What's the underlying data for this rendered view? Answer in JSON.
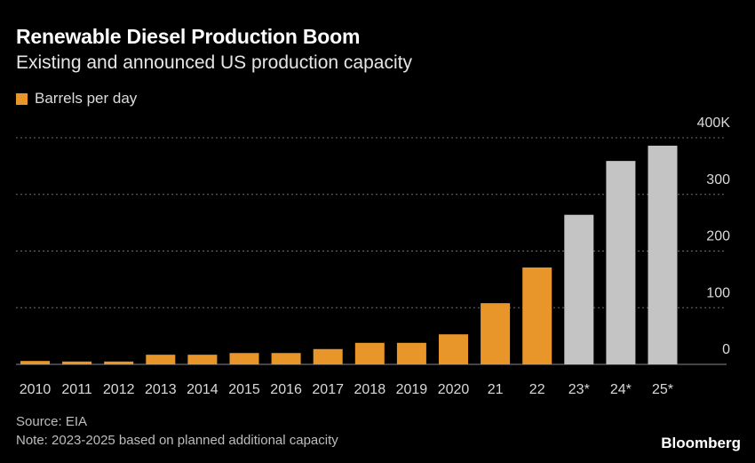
{
  "title": "Renewable Diesel Production Boom",
  "subtitle": "Existing and announced US production capacity",
  "legend": {
    "label": "Barrels per day",
    "color": "#e8962a"
  },
  "footer": {
    "source": "Source: EIA",
    "note": "Note: 2023-2025 based on planned additional capacity",
    "brand": "Bloomberg"
  },
  "colors": {
    "existing": "#e8962a",
    "announced": "#c4c4c4",
    "grid": "#6e6e6e",
    "tick_text": "#d9d9d9"
  },
  "chart_data": {
    "type": "bar",
    "categories": [
      "2010",
      "2011",
      "2012",
      "2013",
      "2014",
      "2015",
      "2016",
      "2017",
      "2018",
      "2019",
      "2020",
      "21",
      "22",
      "23*",
      "24*",
      "25*"
    ],
    "series": [
      {
        "name": "Barrels per day",
        "values": [
          6,
          5,
          5,
          17,
          17,
          20,
          20,
          27,
          38,
          38,
          53,
          108,
          171,
          264,
          359,
          386
        ],
        "status": [
          "existing",
          "existing",
          "existing",
          "existing",
          "existing",
          "existing",
          "existing",
          "existing",
          "existing",
          "existing",
          "existing",
          "existing",
          "existing",
          "announced",
          "announced",
          "announced"
        ]
      }
    ],
    "ylim": [
      0,
      400
    ],
    "yticks": [
      0,
      100,
      200,
      300,
      400
    ],
    "ytick_labels": [
      "0",
      "100",
      "200",
      "300",
      "400K"
    ],
    "grid": true,
    "y_axis_side": "right"
  }
}
